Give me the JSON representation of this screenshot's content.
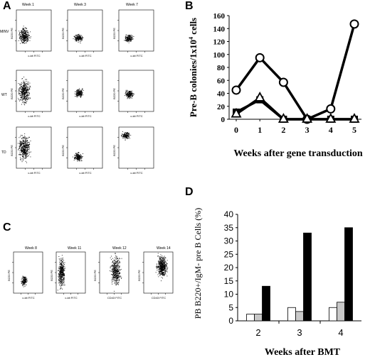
{
  "panels": {
    "A": {
      "letter": "A",
      "columns": [
        "Week 1",
        "Week 3",
        "Week 7"
      ],
      "rows": [
        "MINV",
        "WT",
        "TD"
      ],
      "x_axis_label": "c-kit FITC",
      "y_axis_label": "B220 PE"
    },
    "C": {
      "letter": "C",
      "columns": [
        "Week 8",
        "Week 11",
        "Week 12",
        "Week 14"
      ],
      "x_axis_labels": [
        "c-kit FITC",
        "c-kit FITC",
        "CD43 FITC",
        "CD43 FITC"
      ],
      "y_axis_label": "B220 PE"
    },
    "B": {
      "letter": "B"
    },
    "D": {
      "letter": "D"
    }
  },
  "chart_data": [
    {
      "id": "B",
      "type": "line",
      "x": [
        0,
        1,
        2,
        3,
        4,
        5
      ],
      "xticks": [
        "0",
        "1",
        "2",
        "3",
        "4",
        "5"
      ],
      "xlabel": "Weeks after gene transduction",
      "ylabel": "Pre-B colonies/1x10",
      "ylabel_sup": "4",
      "ylabel_tail": " cells",
      "ylim": [
        0,
        160
      ],
      "yticks": [
        0,
        20,
        40,
        60,
        80,
        100,
        120,
        140,
        160
      ],
      "series": [
        {
          "marker": "circle",
          "values": [
            45,
            95,
            57,
            0,
            16,
            147
          ]
        },
        {
          "marker": "triangle",
          "values": [
            8,
            33,
            0,
            0,
            0,
            0
          ]
        },
        {
          "marker": "square",
          "values": [
            11,
            30,
            0,
            0,
            0,
            0
          ]
        }
      ],
      "grid": false
    },
    {
      "id": "D",
      "type": "bar",
      "categories": [
        "2",
        "3",
        "4"
      ],
      "xlabel": "Weeks after BMT",
      "ylabel": "PB B220+/IgM- pre B Cells (%)",
      "ylim": [
        0,
        40
      ],
      "yticks": [
        0,
        5,
        10,
        15,
        20,
        25,
        30,
        35,
        40
      ],
      "yticklabels": [
        "0",
        "5",
        "10",
        "15",
        "20",
        "25",
        "30",
        "35",
        "40"
      ],
      "series": [
        {
          "color": "#ffffff",
          "values": [
            2.5,
            5,
            5
          ]
        },
        {
          "color": "#c8c8c8",
          "values": [
            2.5,
            3.5,
            7
          ]
        },
        {
          "color": "#000000",
          "values": [
            13,
            33,
            35
          ]
        }
      ],
      "grid": false
    }
  ]
}
